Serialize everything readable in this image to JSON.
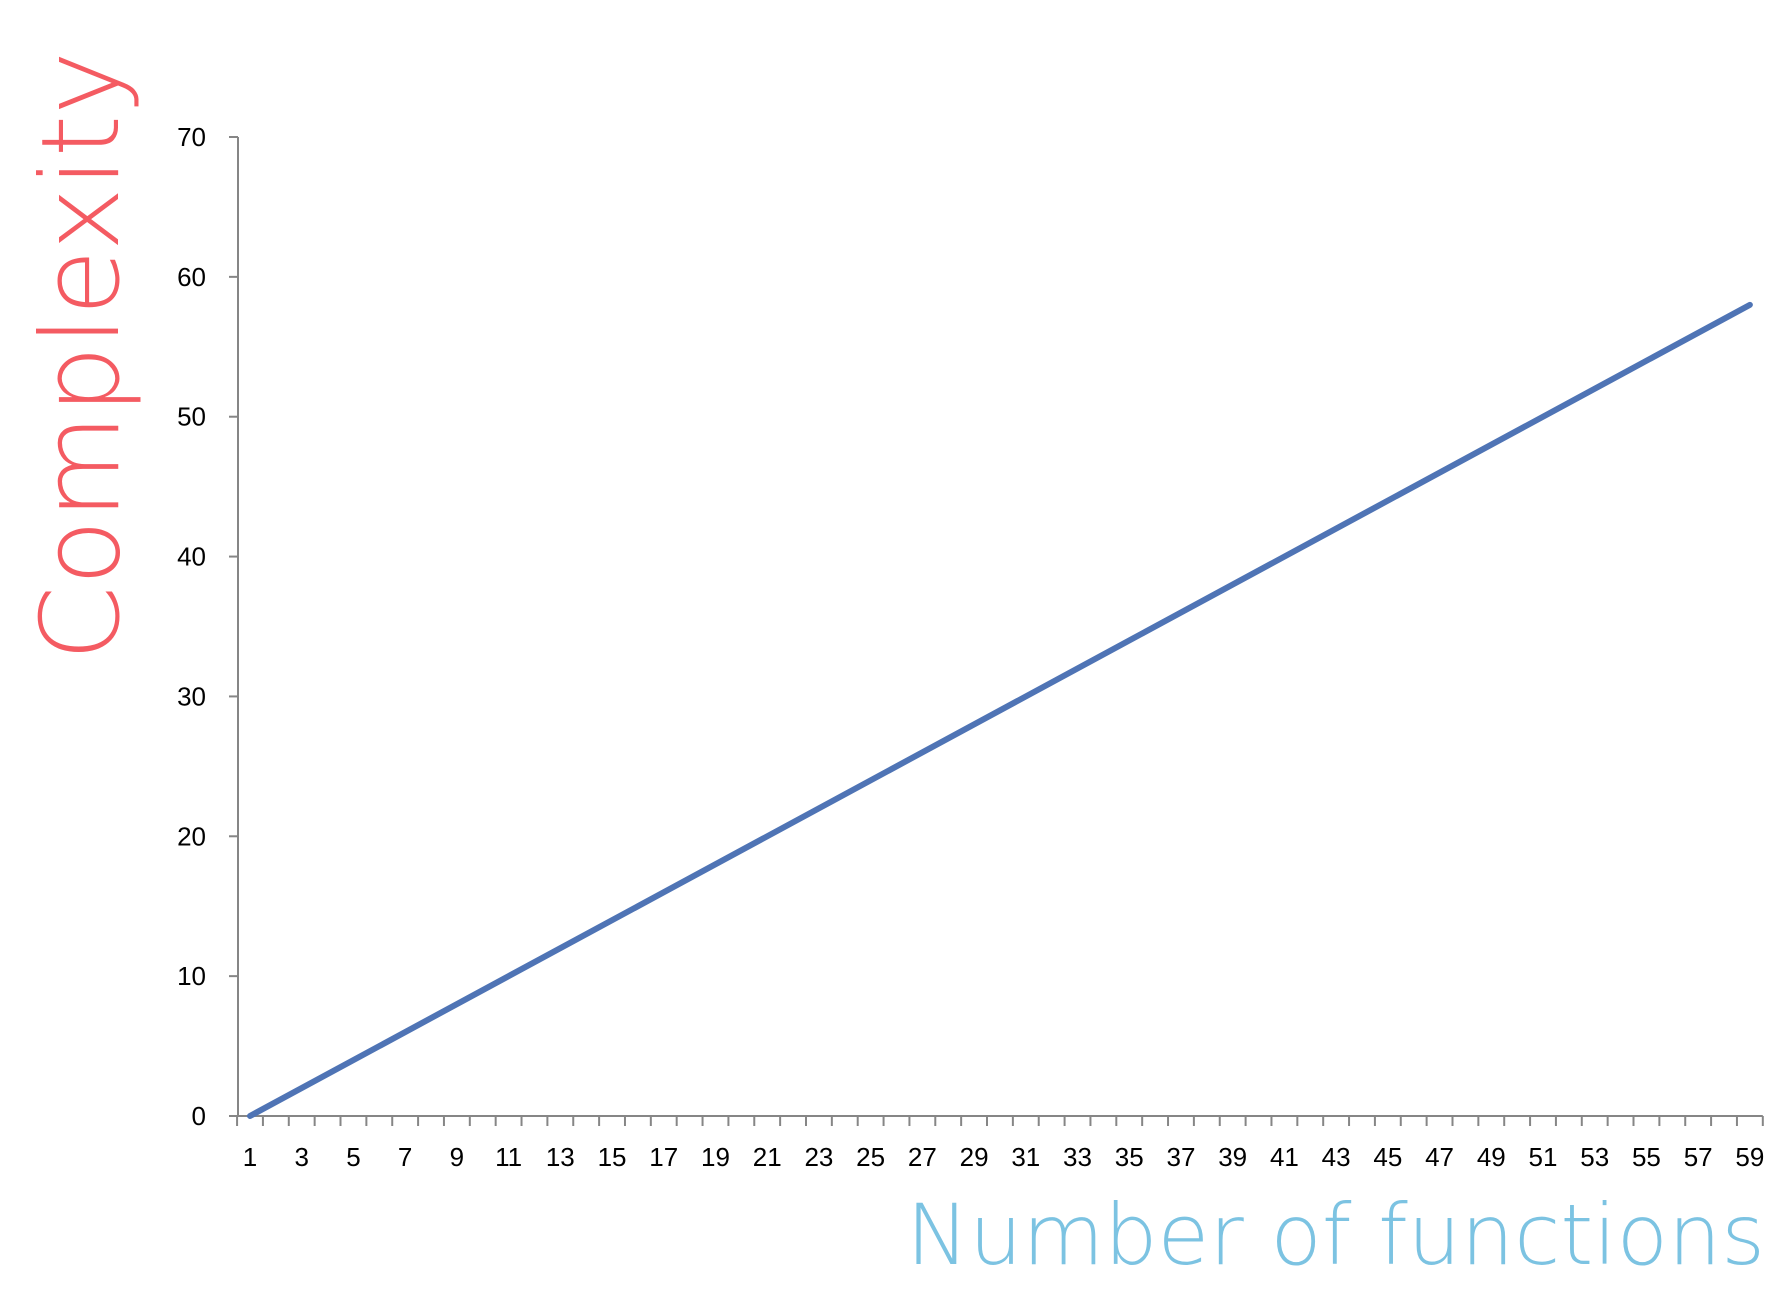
{
  "colors": {
    "line": "#4F74B5",
    "axis": "#868686",
    "ylabel": "#F45B62",
    "xlabel": "#7CC3E2"
  },
  "chart_data": {
    "type": "line",
    "xlabel": "Number of functions",
    "ylabel": "Complexity",
    "x_tick_labels": [
      "1",
      "3",
      "5",
      "7",
      "9",
      "11",
      "13",
      "15",
      "17",
      "19",
      "21",
      "23",
      "25",
      "27",
      "29",
      "31",
      "33",
      "35",
      "37",
      "39",
      "41",
      "43",
      "45",
      "47",
      "49",
      "51",
      "53",
      "55",
      "57",
      "59"
    ],
    "y_ticks": [
      0,
      10,
      20,
      30,
      40,
      50,
      60,
      70
    ],
    "ylim": [
      0,
      70
    ],
    "xlim": [
      1,
      59
    ],
    "grid": false,
    "legend": "none",
    "series": [
      {
        "x": [
          1,
          59
        ],
        "y": [
          0,
          58
        ]
      }
    ]
  }
}
